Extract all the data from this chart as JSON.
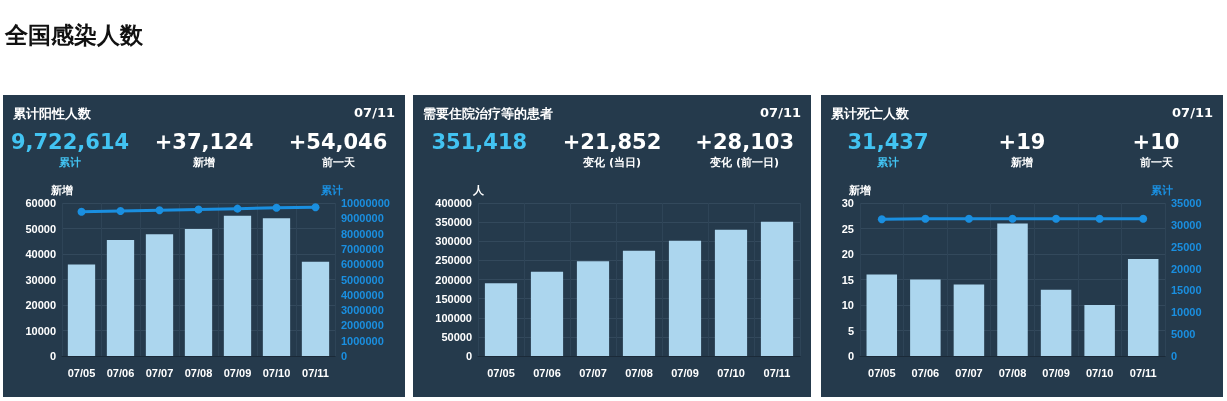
{
  "chart_data": [
    {
      "type": "other",
      "title": "全国感染人数"
    },
    {
      "type": "bar",
      "title": "累计阳性人数",
      "annotations": [
        "07/11",
        "9,722,614",
        "累计",
        "+37,124",
        "新增",
        "+54,046",
        "前一天"
      ],
      "categories": [
        "07/05",
        "07/06",
        "07/07",
        "07/08",
        "07/09",
        "07/10",
        "07/11"
      ],
      "series": [
        {
          "type": "bar",
          "color": "#acd6ee",
          "values": [
            35900,
            45500,
            47700,
            49800,
            55000,
            54000,
            37000
          ]
        },
        {
          "type": "line",
          "axis": "y2",
          "color": "#1a8fe0",
          "values": [
            9430000,
            9480000,
            9530000,
            9580000,
            9630000,
            9690000,
            9720000
          ]
        }
      ],
      "ylabel": "新增",
      "y2label": "累计",
      "ylim": [
        0,
        60000
      ],
      "yticks": [
        0,
        10000,
        20000,
        30000,
        40000,
        50000,
        60000
      ],
      "y2lim": [
        0,
        10000000
      ],
      "y2ticks": [
        0,
        1000000,
        2000000,
        3000000,
        4000000,
        5000000,
        6000000,
        7000000,
        8000000,
        9000000,
        10000000
      ],
      "grid": true,
      "marker": "circle",
      "line_style": "solid"
    },
    {
      "type": "bar",
      "title": "需要住院治疗等的患者",
      "annotations": [
        "07/11",
        "351,418",
        null,
        "+21,852",
        "变化 (当日)",
        "+28,103",
        "变化 (前一日)"
      ],
      "categories": [
        "07/05",
        "07/06",
        "07/07",
        "07/08",
        "07/09",
        "07/10",
        "07/11"
      ],
      "series": [
        {
          "type": "bar",
          "color": "#acd6ee",
          "values": [
            190000,
            220000,
            248000,
            275000,
            301000,
            330000,
            351000
          ]
        }
      ],
      "ylabel": "人",
      "ylim": [
        0,
        400000
      ],
      "yticks": [
        0,
        50000,
        100000,
        150000,
        200000,
        250000,
        300000,
        350000,
        400000
      ],
      "grid": true
    },
    {
      "type": "bar",
      "title": "累计死亡人数",
      "annotations": [
        "07/11",
        "31,437",
        "累计",
        "+19",
        "新增",
        "+10",
        "前一天"
      ],
      "categories": [
        "07/05",
        "07/06",
        "07/07",
        "07/08",
        "07/09",
        "07/10",
        "07/11"
      ],
      "series": [
        {
          "type": "bar",
          "color": "#acd6ee",
          "values": [
            16,
            15,
            14,
            26,
            13,
            10,
            19
          ]
        },
        {
          "type": "line",
          "axis": "y2",
          "color": "#1a8fe0",
          "values": [
            31300,
            31400,
            31400,
            31400,
            31400,
            31400,
            31400
          ]
        }
      ],
      "ylabel": "新增",
      "y2label": "累计",
      "ylim": [
        0,
        30
      ],
      "yticks": [
        0,
        5,
        10,
        15,
        20,
        25,
        30
      ],
      "y2lim": [
        0,
        35000
      ],
      "y2ticks": [
        0,
        5000,
        10000,
        15000,
        20000,
        25000,
        30000,
        35000
      ],
      "grid": true,
      "marker": "circle",
      "line_style": "solid"
    }
  ]
}
